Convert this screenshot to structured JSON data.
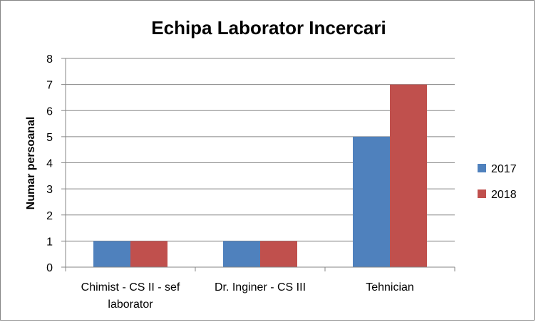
{
  "chart_data": {
    "type": "bar",
    "title": "Echipa Laborator Incercari",
    "ylabel": "Numar persoanal",
    "xlabel": "",
    "categories": [
      [
        "Chimist - CS II - sef",
        "laborator"
      ],
      [
        "Dr. Inginer - CS III"
      ],
      [
        "Tehnician"
      ]
    ],
    "series": [
      {
        "name": "2017",
        "values": [
          1,
          1,
          5
        ],
        "color": "#4F81BD"
      },
      {
        "name": "2018",
        "values": [
          1,
          1,
          7
        ],
        "color": "#C0504D"
      }
    ],
    "ylim": [
      0,
      8
    ],
    "yticks": [
      0,
      1,
      2,
      3,
      4,
      5,
      6,
      7,
      8
    ],
    "grid": true,
    "legend": "right"
  }
}
